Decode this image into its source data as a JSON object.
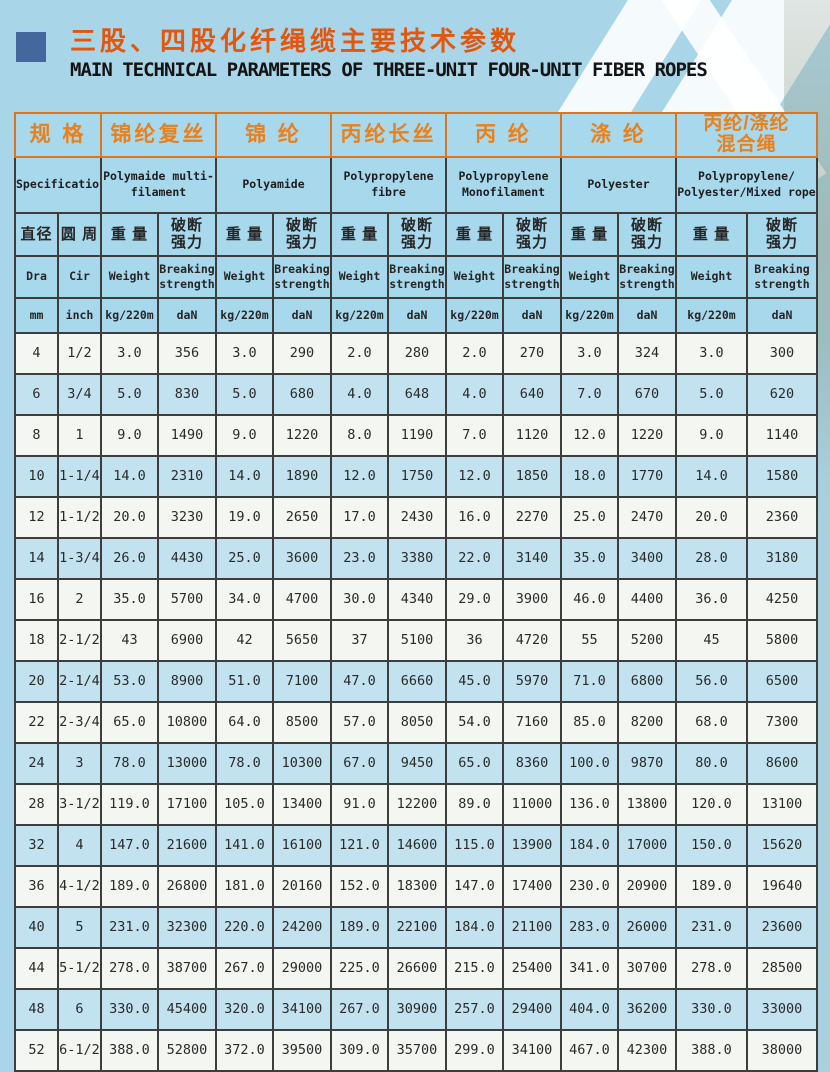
{
  "header": {
    "title_zh": "三股、四股化纤绳缆主要技术参数",
    "title_en": "MAIN TECHNICAL PARAMETERS OF THREE-UNIT FOUR-UNIT FIBER ROPES"
  },
  "colors": {
    "accent_orange": "#e8811c",
    "orange_border": "#dd7420",
    "header_blue": "#a8d8ec",
    "row_blue": "#c2e2f0",
    "title_square_blue": "#44679e",
    "page_background": "#a9d5e8"
  },
  "table": {
    "groups": [
      {
        "zh": "规 格",
        "en": "Specification"
      },
      {
        "zh": "锦纶复丝",
        "en": "Polymaide multi-filament"
      },
      {
        "zh": "锦 纶",
        "en": "Polyamide"
      },
      {
        "zh": "丙纶长丝",
        "en": "Polypropylene fibre"
      },
      {
        "zh": "丙 纶",
        "en": "Polypropylene Monofilament"
      },
      {
        "zh": "涤 纶",
        "en": "Polyester"
      },
      {
        "zh": "丙纶/涤纶\n混合绳",
        "en": "Polypropylene/Polyester/Mixed rope"
      }
    ],
    "columns": {
      "diameter": {
        "zh": "直径",
        "en": "Dra",
        "unit": "mm"
      },
      "circumference": {
        "zh": "圆 周",
        "en": "Cir",
        "unit": "inch"
      },
      "weight": {
        "zh": "重 量",
        "en": "Weight",
        "unit": "kg/220m"
      },
      "breaking": {
        "zh": "破断\n强力",
        "en": "Breaking strength",
        "unit": "daN"
      }
    },
    "rows": [
      [
        "4",
        "1/2",
        "3.0",
        "356",
        "3.0",
        "290",
        "2.0",
        "280",
        "2.0",
        "270",
        "3.0",
        "324",
        "3.0",
        "300"
      ],
      [
        "6",
        "3/4",
        "5.0",
        "830",
        "5.0",
        "680",
        "4.0",
        "648",
        "4.0",
        "640",
        "7.0",
        "670",
        "5.0",
        "620"
      ],
      [
        "8",
        "1",
        "9.0",
        "1490",
        "9.0",
        "1220",
        "8.0",
        "1190",
        "7.0",
        "1120",
        "12.0",
        "1220",
        "9.0",
        "1140"
      ],
      [
        "10",
        "1-1/4",
        "14.0",
        "2310",
        "14.0",
        "1890",
        "12.0",
        "1750",
        "12.0",
        "1850",
        "18.0",
        "1770",
        "14.0",
        "1580"
      ],
      [
        "12",
        "1-1/2",
        "20.0",
        "3230",
        "19.0",
        "2650",
        "17.0",
        "2430",
        "16.0",
        "2270",
        "25.0",
        "2470",
        "20.0",
        "2360"
      ],
      [
        "14",
        "1-3/4",
        "26.0",
        "4430",
        "25.0",
        "3600",
        "23.0",
        "3380",
        "22.0",
        "3140",
        "35.0",
        "3400",
        "28.0",
        "3180"
      ],
      [
        "16",
        "2",
        "35.0",
        "5700",
        "34.0",
        "4700",
        "30.0",
        "4340",
        "29.0",
        "3900",
        "46.0",
        "4400",
        "36.0",
        "4250"
      ],
      [
        "18",
        "2-1/2",
        "43",
        "6900",
        "42",
        "5650",
        "37",
        "5100",
        "36",
        "4720",
        "55",
        "5200",
        "45",
        "5800"
      ],
      [
        "20",
        "2-1/4",
        "53.0",
        "8900",
        "51.0",
        "7100",
        "47.0",
        "6660",
        "45.0",
        "5970",
        "71.0",
        "6800",
        "56.0",
        "6500"
      ],
      [
        "22",
        "2-3/4",
        "65.0",
        "10800",
        "64.0",
        "8500",
        "57.0",
        "8050",
        "54.0",
        "7160",
        "85.0",
        "8200",
        "68.0",
        "7300"
      ],
      [
        "24",
        "3",
        "78.0",
        "13000",
        "78.0",
        "10300",
        "67.0",
        "9450",
        "65.0",
        "8360",
        "100.0",
        "9870",
        "80.0",
        "8600"
      ],
      [
        "28",
        "3-1/2",
        "119.0",
        "17100",
        "105.0",
        "13400",
        "91.0",
        "12200",
        "89.0",
        "11000",
        "136.0",
        "13800",
        "120.0",
        "13100"
      ],
      [
        "32",
        "4",
        "147.0",
        "21600",
        "141.0",
        "16100",
        "121.0",
        "14600",
        "115.0",
        "13900",
        "184.0",
        "17000",
        "150.0",
        "15620"
      ],
      [
        "36",
        "4-1/2",
        "189.0",
        "26800",
        "181.0",
        "20160",
        "152.0",
        "18300",
        "147.0",
        "17400",
        "230.0",
        "20900",
        "189.0",
        "19640"
      ],
      [
        "40",
        "5",
        "231.0",
        "32300",
        "220.0",
        "24200",
        "189.0",
        "22100",
        "184.0",
        "21100",
        "283.0",
        "26000",
        "231.0",
        "23600"
      ],
      [
        "44",
        "5-1/2",
        "278.0",
        "38700",
        "267.0",
        "29000",
        "225.0",
        "26600",
        "215.0",
        "25400",
        "341.0",
        "30700",
        "278.0",
        "28500"
      ],
      [
        "48",
        "6",
        "330.0",
        "45400",
        "320.0",
        "34100",
        "267.0",
        "30900",
        "257.0",
        "29400",
        "404.0",
        "36200",
        "330.0",
        "33000"
      ],
      [
        "52",
        "6-1/2",
        "388.0",
        "52800",
        "372.0",
        "39500",
        "309.0",
        "35700",
        "299.0",
        "34100",
        "467.0",
        "42300",
        "388.0",
        "38000"
      ]
    ]
  }
}
